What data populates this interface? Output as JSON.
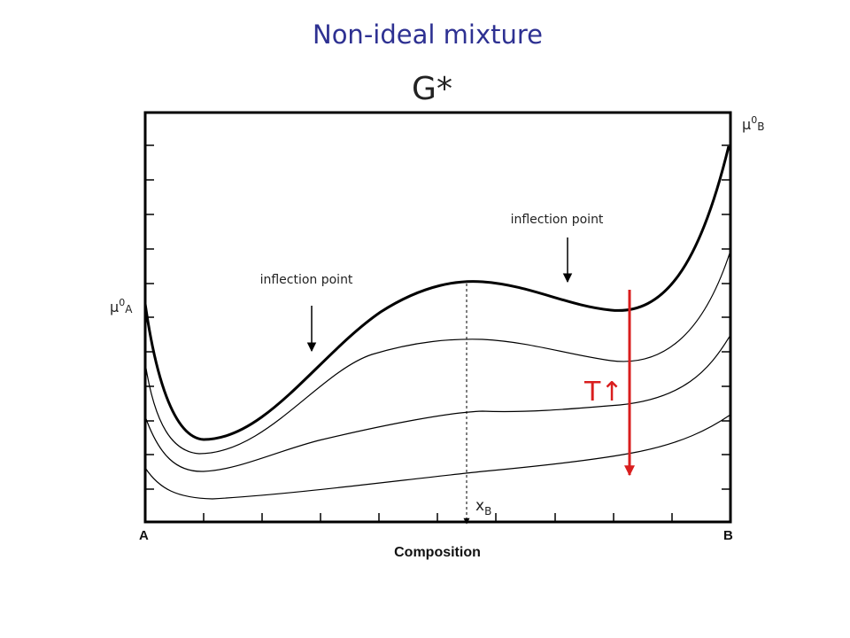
{
  "title": "Non-ideal mixture",
  "y_label": "G*",
  "x_axis_label": "Composition",
  "x_left": "A",
  "x_right": "B",
  "mu_a": {
    "base": "μ",
    "sup": "0",
    "sub": "A"
  },
  "mu_b": {
    "base": "μ",
    "sup": "0",
    "sub": "B"
  },
  "inflection_label": "inflection point",
  "xb": {
    "base": "x",
    "sub": "B"
  },
  "temperature": "T↑",
  "colors": {
    "title": "#2e3192",
    "arrow": "#d91e1e",
    "curve": "#000000"
  }
}
